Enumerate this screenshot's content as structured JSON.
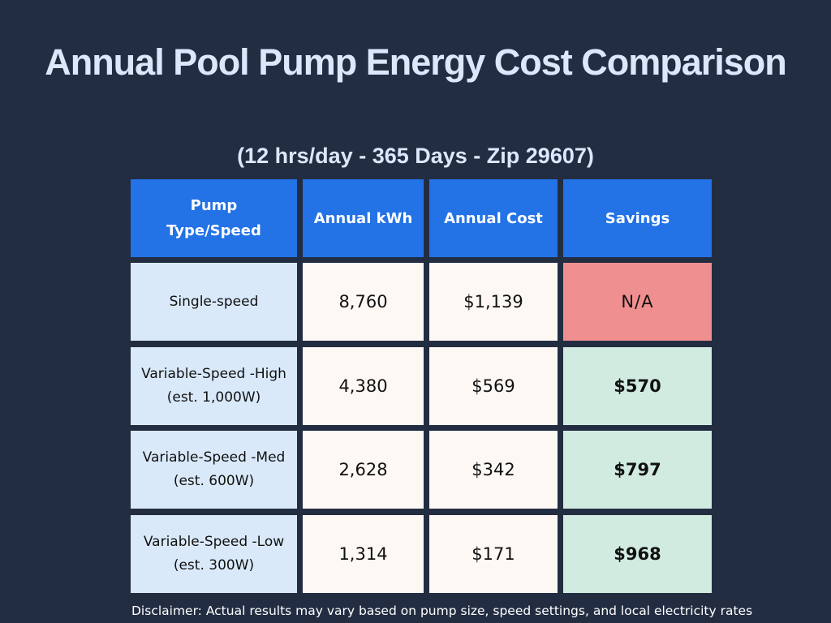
{
  "title": "Annual Pool Pump Energy Cost Comparison",
  "subtitle": "(12 hrs/day - 365 Days - Zip 29607)",
  "disclaimer": "Disclaimer: Actual results may vary based on pump size, speed settings, and local electricity rates",
  "chart_data": {
    "type": "table",
    "title": "Annual Pool Pump Energy Cost Comparison",
    "subtitle": "(12 hrs/day - 365 Days - Zip 29607)",
    "columns": [
      "Pump Type/Speed",
      "Annual kWh",
      "Annual Cost",
      "Savings"
    ],
    "rows": [
      {
        "type_line1": "Single-speed",
        "type_line2": "",
        "kwh": "8,760",
        "cost": "$1,139",
        "savings": "N/A"
      },
      {
        "type_line1": "Variable-Speed -High",
        "type_line2": "(est. 1,000W)",
        "kwh": "4,380",
        "cost": "$569",
        "savings": "$570"
      },
      {
        "type_line1": "Variable-Speed -Med",
        "type_line2": "(est. 600W)",
        "kwh": "2,628",
        "cost": "$342",
        "savings": "$797"
      },
      {
        "type_line1": "Variable-Speed -Low",
        "type_line2": "(est. 300W)",
        "kwh": "1,314",
        "cost": "$171",
        "savings": "$968"
      }
    ],
    "values": {
      "annual_kwh": [
        8760,
        4380,
        2628,
        1314
      ],
      "annual_cost_usd": [
        1139,
        569,
        342,
        171
      ],
      "savings_usd": [
        null,
        570,
        797,
        968
      ]
    },
    "colors": {
      "background": "#232d42",
      "header": "#2372e6",
      "type_cell": "#d9e9fa",
      "value_cell": "#fdf8f4",
      "na_cell": "#f08f90",
      "savings_cell": "#d1ebe1"
    }
  }
}
